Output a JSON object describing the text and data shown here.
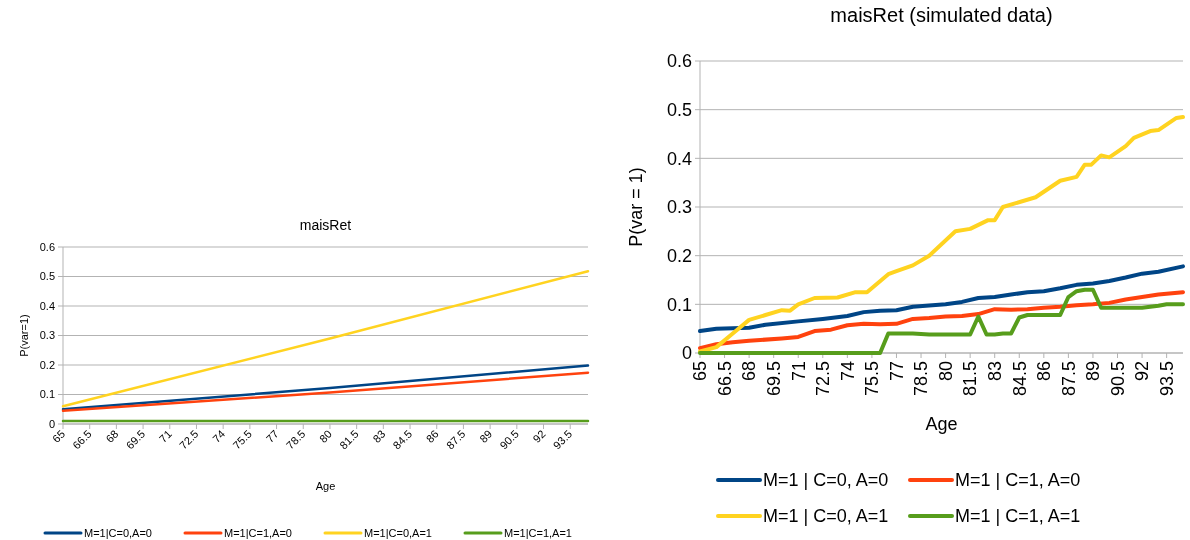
{
  "chart_data": [
    {
      "type": "line",
      "title": "maisRet",
      "xlabel": "Age",
      "ylabel": "P(var=1)",
      "xlim": [
        65,
        94.5
      ],
      "xticks": [
        65,
        66.5,
        68,
        69.5,
        71,
        72.5,
        74,
        75.5,
        77,
        78.5,
        80,
        81.5,
        83,
        84.5,
        86,
        87.5,
        89,
        90.5,
        92,
        93.5
      ],
      "ylim": [
        0,
        0.6
      ],
      "yticks": [
        0,
        0.1,
        0.2,
        0.3,
        0.4,
        0.5,
        0.6
      ],
      "grid": "y",
      "legend": "bottom",
      "marker": "none",
      "line_style": "solid",
      "series": [
        {
          "name": "M=1|C=0,A=0",
          "color": "#004586",
          "x": [
            65,
            80,
            94.5
          ],
          "values": [
            0.05,
            0.122,
            0.198
          ]
        },
        {
          "name": "M=1|C=1,A=0",
          "color": "#ff420e",
          "x": [
            65,
            80,
            94.5
          ],
          "values": [
            0.045,
            0.107,
            0.174
          ]
        },
        {
          "name": "M=1|C=0,A=1",
          "color": "#ffd320",
          "x": [
            65,
            80,
            94.5
          ],
          "values": [
            0.06,
            0.29,
            0.518
          ]
        },
        {
          "name": "M=1|C=1,A=1",
          "color": "#579d1c",
          "x": [
            65,
            94.5
          ],
          "values": [
            0.01,
            0.01
          ]
        }
      ]
    },
    {
      "type": "line",
      "title": "maisRet (simulated data)",
      "xlabel": "Age",
      "ylabel": "P(var = 1)",
      "xlim": [
        65,
        94.5
      ],
      "xticks": [
        65,
        66.5,
        68,
        69.5,
        71,
        72.5,
        74,
        75.5,
        77,
        78.5,
        80,
        81.5,
        83,
        84.5,
        86,
        87.5,
        89,
        90.5,
        92,
        93.5
      ],
      "ylim": [
        0,
        0.6
      ],
      "yticks": [
        0,
        0.1,
        0.2,
        0.3,
        0.4,
        0.5,
        0.6
      ],
      "grid": "y",
      "legend": "bottom",
      "marker": "none",
      "line_style": "solid",
      "series": [
        {
          "name": "M=1 | C=0, A=0",
          "color": "#004586",
          "x": [
            65,
            66,
            68,
            69,
            71,
            72.5,
            74,
            75,
            76,
            77,
            78,
            80,
            81,
            82,
            83,
            84,
            85,
            86,
            87,
            88,
            89,
            90,
            91,
            92,
            93,
            94.5
          ],
          "values": [
            0.045,
            0.05,
            0.052,
            0.058,
            0.065,
            0.07,
            0.076,
            0.084,
            0.087,
            0.088,
            0.095,
            0.1,
            0.105,
            0.113,
            0.115,
            0.12,
            0.125,
            0.127,
            0.133,
            0.14,
            0.143,
            0.148,
            0.155,
            0.163,
            0.167,
            0.178
          ]
        },
        {
          "name": "M=1 | C=1, A=0",
          "color": "#ff420e",
          "x": [
            65,
            66,
            67,
            68,
            70,
            71,
            72,
            73,
            74,
            75,
            76,
            77,
            78,
            79,
            80,
            81,
            82,
            83,
            84,
            85,
            86,
            87,
            88,
            89,
            90,
            91,
            92,
            93,
            94.5
          ],
          "values": [
            0.01,
            0.018,
            0.022,
            0.025,
            0.03,
            0.033,
            0.045,
            0.048,
            0.057,
            0.06,
            0.059,
            0.06,
            0.07,
            0.072,
            0.075,
            0.076,
            0.08,
            0.09,
            0.089,
            0.09,
            0.093,
            0.095,
            0.098,
            0.1,
            0.103,
            0.11,
            0.115,
            0.12,
            0.125
          ]
        },
        {
          "name": "M=1 | C=0, A=1",
          "color": "#ffd320",
          "x": [
            65,
            66,
            67,
            68,
            69,
            70,
            70.5,
            71,
            72,
            73.4,
            74.5,
            75.2,
            76.5,
            77,
            78,
            79,
            80.6,
            81.5,
            82.6,
            83,
            83.5,
            85.5,
            87,
            88,
            88.5,
            88.9,
            89.5,
            90,
            91,
            91.5,
            92.5,
            93,
            94.1,
            94.5
          ],
          "values": [
            0.003,
            0.012,
            0.04,
            0.068,
            0.078,
            0.088,
            0.087,
            0.1,
            0.113,
            0.114,
            0.125,
            0.125,
            0.162,
            0.168,
            0.18,
            0.2,
            0.25,
            0.255,
            0.273,
            0.273,
            0.3,
            0.32,
            0.354,
            0.362,
            0.387,
            0.387,
            0.406,
            0.402,
            0.425,
            0.442,
            0.456,
            0.458,
            0.483,
            0.485
          ]
        },
        {
          "name": "M=1 | C=1, A=1",
          "color": "#579d1c",
          "x": [
            65,
            76,
            76.5,
            78,
            79,
            81.5,
            82,
            82.5,
            83,
            83.5,
            84,
            84.5,
            85,
            87,
            87.5,
            88,
            88.5,
            89,
            89.5,
            92,
            93,
            93.5,
            94.5
          ],
          "values": [
            0,
            0,
            0.04,
            0.04,
            0.038,
            0.038,
            0.075,
            0.038,
            0.038,
            0.04,
            0.04,
            0.073,
            0.078,
            0.078,
            0.115,
            0.127,
            0.13,
            0.13,
            0.093,
            0.093,
            0.097,
            0.1,
            0.1
          ]
        }
      ]
    }
  ]
}
